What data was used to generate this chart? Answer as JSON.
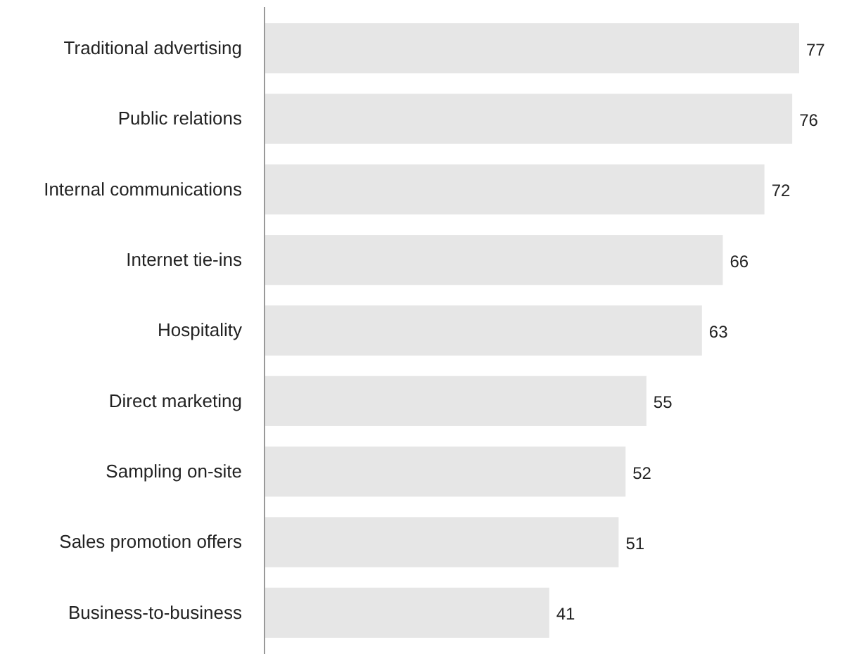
{
  "chart_data": {
    "type": "bar",
    "orientation": "horizontal",
    "categories": [
      "Traditional advertising",
      "Public relations",
      "Internal communications",
      "Internet tie-ins",
      "Hospitality",
      "Direct marketing",
      "Sampling on-site",
      "Sales promotion offers",
      "Business-to-business"
    ],
    "values": [
      77,
      76,
      72,
      66,
      63,
      55,
      52,
      51,
      41
    ],
    "color": "#e6e6e6",
    "data_labels": true
  }
}
